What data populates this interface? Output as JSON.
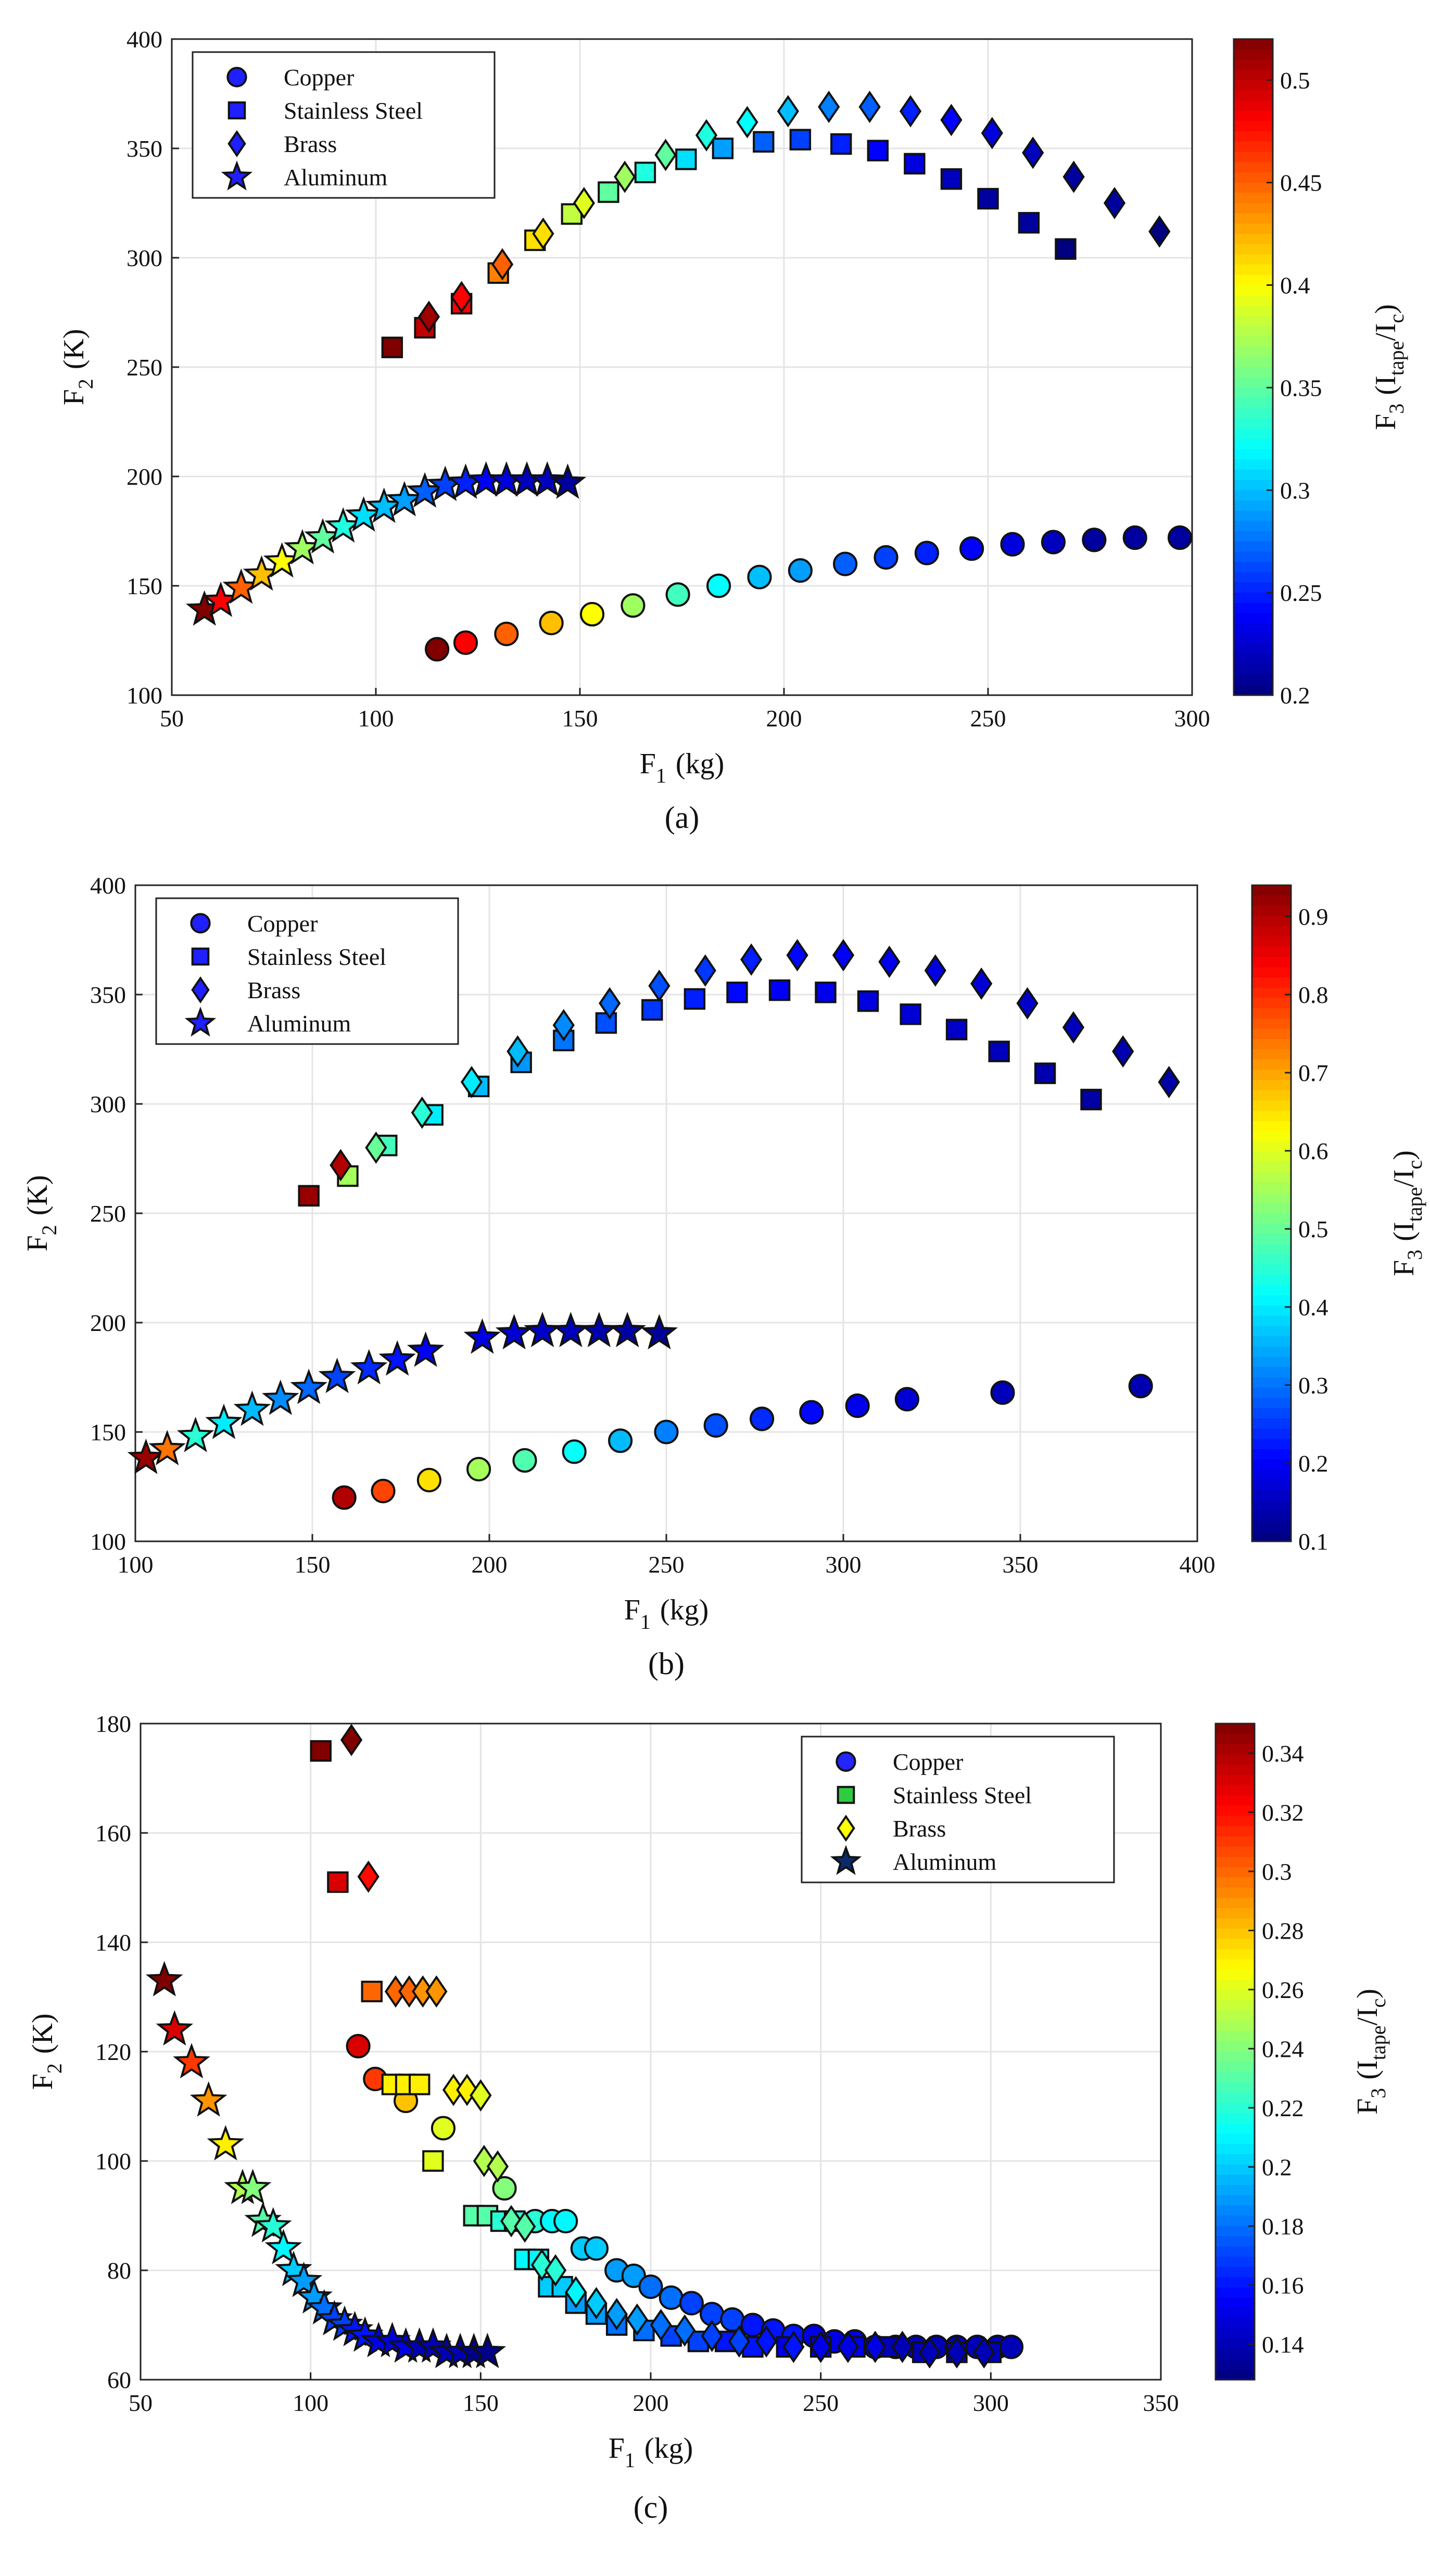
{
  "chart_data": [
    {
      "type": "scatter",
      "panel": "a",
      "caption": "(a)",
      "xlabel": "F",
      "xlabel_sub": "1",
      "xlabel_unit": "(kg)",
      "ylabel": "F",
      "ylabel_sub": "2",
      "ylabel_unit": "(K)",
      "colorbar_label": "F",
      "colorbar_sub": "3",
      "colorbar_unit_open": "(I",
      "colorbar_unit_tape": "tape",
      "colorbar_unit_mid": "/I",
      "colorbar_unit_c": "c",
      "colorbar_unit_close": ")",
      "xlim": [
        50,
        300
      ],
      "ylim": [
        100,
        400
      ],
      "xticks": [
        50,
        100,
        150,
        200,
        250,
        300
      ],
      "yticks": [
        100,
        150,
        200,
        250,
        300,
        350,
        400
      ],
      "clim": [
        0.2,
        0.52
      ],
      "cticks": [
        0.2,
        0.25,
        0.3,
        0.35,
        0.4,
        0.45,
        0.5
      ],
      "legend_position": "top-left",
      "legend_color": "#1f1fff",
      "series": [
        {
          "name": "Copper",
          "marker": "circle",
          "x": [
            115,
            122,
            132,
            143,
            153,
            163,
            174,
            184,
            194,
            204,
            215,
            225,
            235,
            246,
            256,
            266,
            276,
            286,
            297
          ],
          "y": [
            121,
            124,
            128,
            133,
            137,
            141,
            146,
            150,
            154,
            157,
            160,
            163,
            165,
            167,
            169,
            170,
            171,
            172,
            172
          ],
          "c": [
            0.52,
            0.48,
            0.45,
            0.42,
            0.4,
            0.37,
            0.34,
            0.32,
            0.3,
            0.29,
            0.27,
            0.26,
            0.25,
            0.24,
            0.23,
            0.22,
            0.21,
            0.21,
            0.21
          ]
        },
        {
          "name": "Stainless Steel",
          "marker": "square",
          "x": [
            104,
            112,
            121,
            130,
            139,
            148,
            157,
            166,
            176,
            185,
            195,
            204,
            214,
            223,
            232,
            241,
            250,
            260,
            269
          ],
          "y": [
            259,
            268,
            279,
            293,
            308,
            320,
            330,
            339,
            345,
            350,
            353,
            354,
            352,
            349,
            343,
            336,
            327,
            316,
            304
          ],
          "c": [
            0.52,
            0.5,
            0.48,
            0.44,
            0.41,
            0.38,
            0.35,
            0.33,
            0.31,
            0.29,
            0.27,
            0.26,
            0.25,
            0.24,
            0.23,
            0.22,
            0.21,
            0.21,
            0.2
          ]
        },
        {
          "name": "Brass",
          "marker": "diamond",
          "x": [
            113,
            121,
            131,
            141,
            151,
            161,
            171,
            181,
            191,
            201,
            211,
            221,
            231,
            241,
            251,
            261,
            271,
            281,
            292
          ],
          "y": [
            273,
            282,
            297,
            311,
            325,
            337,
            347,
            356,
            362,
            367,
            369,
            369,
            367,
            363,
            357,
            348,
            337,
            325,
            312
          ],
          "c": [
            0.51,
            0.48,
            0.45,
            0.41,
            0.39,
            0.37,
            0.35,
            0.33,
            0.32,
            0.3,
            0.28,
            0.27,
            0.25,
            0.24,
            0.23,
            0.22,
            0.21,
            0.21,
            0.2
          ]
        },
        {
          "name": "Aluminum",
          "marker": "star",
          "x": [
            58,
            62,
            67,
            72,
            77,
            82,
            87,
            92,
            97,
            102,
            107,
            112,
            117,
            122,
            127,
            132,
            137,
            142,
            147
          ],
          "y": [
            139,
            143,
            149,
            155,
            161,
            167,
            172,
            177,
            182,
            186,
            189,
            193,
            196,
            197,
            198,
            198,
            198,
            198,
            197
          ],
          "c": [
            0.52,
            0.48,
            0.45,
            0.42,
            0.4,
            0.37,
            0.35,
            0.33,
            0.31,
            0.3,
            0.29,
            0.27,
            0.26,
            0.25,
            0.24,
            0.23,
            0.22,
            0.22,
            0.21
          ]
        }
      ]
    },
    {
      "type": "scatter",
      "panel": "b",
      "caption": "(b)",
      "xlabel": "F",
      "xlabel_sub": "1",
      "xlabel_unit": "(kg)",
      "ylabel": "F",
      "ylabel_sub": "2",
      "ylabel_unit": "(K)",
      "colorbar_label": "F",
      "colorbar_sub": "3",
      "colorbar_unit_open": "(I",
      "colorbar_unit_tape": "tape",
      "colorbar_unit_mid": "/I",
      "colorbar_unit_c": "c",
      "colorbar_unit_close": ")",
      "xlim": [
        100,
        400
      ],
      "ylim": [
        100,
        400
      ],
      "xticks": [
        100,
        150,
        200,
        250,
        300,
        350,
        400
      ],
      "yticks": [
        100,
        150,
        200,
        250,
        300,
        350,
        400
      ],
      "clim": [
        0.1,
        0.94
      ],
      "cticks": [
        0.1,
        0.2,
        0.3,
        0.4,
        0.5,
        0.6,
        0.7,
        0.8,
        0.9
      ],
      "legend_position": "top-left",
      "legend_color": "#1f1fff",
      "series": [
        {
          "name": "Copper",
          "marker": "circle",
          "x": [
            159,
            170,
            183,
            197,
            210,
            224,
            237,
            250,
            264,
            277,
            291,
            304,
            318,
            345,
            384
          ],
          "y": [
            120,
            123,
            128,
            133,
            137,
            141,
            146,
            150,
            153,
            156,
            159,
            162,
            165,
            168,
            171
          ],
          "c": [
            0.9,
            0.78,
            0.65,
            0.55,
            0.48,
            0.42,
            0.36,
            0.31,
            0.27,
            0.24,
            0.21,
            0.19,
            0.17,
            0.15,
            0.14
          ]
        },
        {
          "name": "Stainless Steel",
          "marker": "square",
          "x": [
            149,
            160,
            171,
            184,
            197,
            209,
            221,
            233,
            246,
            258,
            270,
            282,
            295,
            307,
            319,
            332,
            344,
            357,
            370
          ],
          "y": [
            258,
            267,
            281,
            295,
            308,
            319,
            329,
            337,
            343,
            348,
            351,
            352,
            351,
            347,
            341,
            334,
            324,
            314,
            302
          ],
          "c": [
            0.92,
            0.55,
            0.47,
            0.4,
            0.36,
            0.33,
            0.3,
            0.27,
            0.25,
            0.23,
            0.21,
            0.2,
            0.19,
            0.18,
            0.17,
            0.16,
            0.15,
            0.14,
            0.13
          ]
        },
        {
          "name": "Brass",
          "marker": "diamond",
          "x": [
            158,
            168,
            181,
            195,
            208,
            221,
            234,
            248,
            261,
            274,
            287,
            300,
            313,
            326,
            339,
            352,
            365,
            379,
            392
          ],
          "y": [
            272,
            280,
            296,
            310,
            324,
            336,
            346,
            354,
            361,
            366,
            368,
            368,
            365,
            361,
            355,
            346,
            335,
            324,
            310
          ],
          "c": [
            0.9,
            0.5,
            0.45,
            0.4,
            0.36,
            0.32,
            0.29,
            0.27,
            0.25,
            0.23,
            0.21,
            0.2,
            0.19,
            0.18,
            0.17,
            0.16,
            0.15,
            0.14,
            0.13
          ]
        },
        {
          "name": "Aluminum",
          "marker": "star",
          "x": [
            103,
            109,
            117,
            125,
            133,
            141,
            149,
            157,
            166,
            174,
            182,
            198,
            207,
            215,
            223,
            231,
            239,
            248
          ],
          "y": [
            138,
            142,
            148,
            154,
            160,
            165,
            170,
            175,
            179,
            183,
            187,
            193,
            195,
            196,
            196,
            196,
            196,
            195
          ],
          "c": [
            0.92,
            0.74,
            0.45,
            0.4,
            0.36,
            0.32,
            0.29,
            0.26,
            0.24,
            0.22,
            0.2,
            0.18,
            0.17,
            0.16,
            0.15,
            0.14,
            0.13,
            0.12
          ]
        }
      ]
    },
    {
      "type": "scatter",
      "panel": "c",
      "caption": "(c)",
      "xlabel": "F",
      "xlabel_sub": "1",
      "xlabel_unit": "(kg)",
      "ylabel": "F",
      "ylabel_sub": "2",
      "ylabel_unit": "(K)",
      "colorbar_label": "F",
      "colorbar_sub": "3",
      "colorbar_unit_open": "(I",
      "colorbar_unit_tape": "tape",
      "colorbar_unit_mid": "/I",
      "colorbar_unit_c": "c",
      "colorbar_unit_close": ")",
      "xlim": [
        50,
        350
      ],
      "ylim": [
        60,
        180
      ],
      "xticks": [
        50,
        100,
        150,
        200,
        250,
        300,
        350
      ],
      "yticks": [
        60,
        80,
        100,
        120,
        140,
        160,
        180
      ],
      "clim": [
        0.128,
        0.35
      ],
      "cticks": [
        0.14,
        0.16,
        0.18,
        0.2,
        0.22,
        0.24,
        0.26,
        0.28,
        0.3,
        0.32,
        0.34
      ],
      "legend_position": "top-right",
      "legend_colors": [
        "#2424ff",
        "#2ecc40",
        "#ffff00",
        "#0a2a6a"
      ],
      "series": [
        {
          "name": "Copper",
          "marker": "circle",
          "x": [
            114,
            119,
            128,
            139,
            157,
            166,
            171,
            175,
            180,
            184,
            190,
            195,
            200,
            206,
            212,
            218,
            224,
            230,
            236,
            242,
            248,
            254,
            260,
            266,
            272,
            278,
            284,
            290,
            296,
            302,
            306
          ],
          "y": [
            121,
            115,
            111,
            106,
            95,
            89,
            89,
            89,
            84,
            84,
            80,
            79,
            77,
            75,
            74,
            72,
            71,
            70,
            69,
            68,
            68,
            67,
            67,
            66,
            66,
            66,
            66,
            66,
            66,
            66,
            66
          ],
          "c": [
            0.33,
            0.31,
            0.28,
            0.26,
            0.24,
            0.22,
            0.21,
            0.21,
            0.2,
            0.2,
            0.19,
            0.19,
            0.18,
            0.18,
            0.17,
            0.17,
            0.17,
            0.16,
            0.16,
            0.16,
            0.15,
            0.15,
            0.15,
            0.15,
            0.14,
            0.14,
            0.14,
            0.14,
            0.14,
            0.14,
            0.14
          ]
        },
        {
          "name": "Stainless Steel",
          "marker": "square",
          "x": [
            103,
            108,
            118,
            124,
            128,
            132,
            136,
            148,
            152,
            156,
            160,
            163,
            167,
            170,
            174,
            178,
            184,
            190,
            198,
            206,
            214,
            222,
            230,
            240,
            250,
            260,
            270,
            280,
            290,
            300
          ],
          "y": [
            175,
            151,
            131,
            114,
            114,
            114,
            100,
            90,
            90,
            89,
            89,
            82,
            82,
            77,
            77,
            74,
            72,
            70,
            69,
            68,
            67,
            67,
            66,
            66,
            66,
            66,
            66,
            65,
            65,
            65
          ],
          "c": [
            0.35,
            0.33,
            0.3,
            0.27,
            0.27,
            0.27,
            0.26,
            0.23,
            0.23,
            0.22,
            0.22,
            0.21,
            0.21,
            0.2,
            0.2,
            0.19,
            0.19,
            0.18,
            0.18,
            0.17,
            0.17,
            0.16,
            0.16,
            0.15,
            0.15,
            0.15,
            0.14,
            0.14,
            0.14,
            0.14
          ]
        },
        {
          "name": "Brass",
          "marker": "diamond",
          "x": [
            112,
            117,
            125,
            129,
            133,
            137,
            142,
            146,
            150,
            151,
            155,
            159,
            163,
            168,
            172,
            178,
            184,
            190,
            196,
            203,
            210,
            218,
            226,
            234,
            242,
            250,
            258,
            266,
            274,
            282,
            290,
            298
          ],
          "y": [
            177,
            152,
            131,
            131,
            131,
            131,
            113,
            113,
            112,
            100,
            99,
            89,
            88,
            81,
            80,
            76,
            74,
            72,
            71,
            70,
            69,
            68,
            67,
            67,
            66,
            66,
            66,
            66,
            66,
            65,
            65,
            65
          ],
          "c": [
            0.35,
            0.32,
            0.3,
            0.3,
            0.29,
            0.29,
            0.27,
            0.27,
            0.26,
            0.25,
            0.25,
            0.23,
            0.23,
            0.22,
            0.22,
            0.21,
            0.2,
            0.19,
            0.19,
            0.18,
            0.18,
            0.17,
            0.17,
            0.16,
            0.16,
            0.15,
            0.15,
            0.15,
            0.14,
            0.14,
            0.14,
            0.14
          ]
        },
        {
          "name": "Aluminum",
          "marker": "star",
          "x": [
            57,
            60,
            65,
            70,
            75,
            80,
            83,
            86,
            89,
            92,
            95,
            98,
            101,
            104,
            107,
            110,
            113,
            116,
            120,
            124,
            128,
            132,
            136,
            140,
            144,
            148,
            152
          ],
          "y": [
            133,
            124,
            118,
            111,
            103,
            95,
            95,
            89,
            88,
            84,
            80,
            78,
            75,
            73,
            71,
            70,
            69,
            68,
            67,
            67,
            66,
            66,
            66,
            65,
            65,
            65,
            65
          ],
          "c": [
            0.35,
            0.33,
            0.31,
            0.29,
            0.27,
            0.25,
            0.24,
            0.23,
            0.22,
            0.21,
            0.2,
            0.19,
            0.19,
            0.18,
            0.17,
            0.17,
            0.16,
            0.16,
            0.15,
            0.15,
            0.15,
            0.14,
            0.14,
            0.14,
            0.14,
            0.13,
            0.13
          ]
        }
      ]
    }
  ]
}
